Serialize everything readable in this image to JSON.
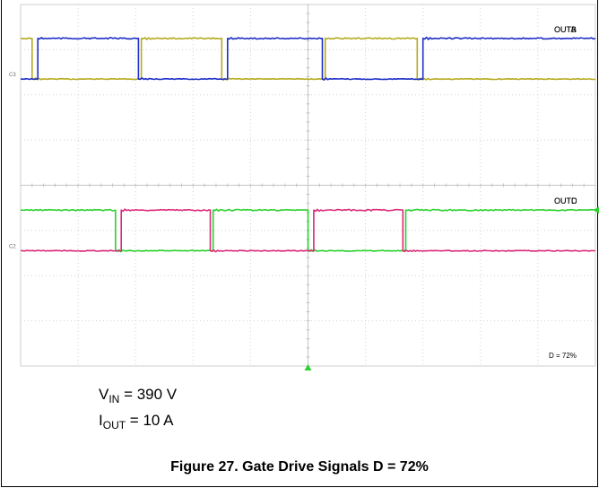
{
  "chart_data": {
    "type": "line",
    "title": "",
    "xlabel": "",
    "ylabel": "",
    "grid": true,
    "x_divisions": 10,
    "y_divisions": 8,
    "x_range": [
      0,
      10
    ],
    "y_range": [
      0,
      8
    ],
    "annotation": "D = 72%",
    "ch_markers": [
      "C3",
      "C2"
    ],
    "series": [
      {
        "name": "OUTA",
        "color": "#b5ab1e",
        "low": 6.35,
        "high": 7.25,
        "x": [
          0,
          0.2,
          0.2,
          2.1,
          2.1,
          3.5,
          3.5,
          5.3,
          5.3,
          6.9,
          6.9,
          10
        ],
        "y": [
          7.25,
          7.25,
          6.35,
          6.35,
          7.25,
          7.25,
          6.35,
          6.35,
          7.25,
          7.25,
          6.35,
          6.35
        ]
      },
      {
        "name": "OUTB",
        "color": "#1f2fc6",
        "low": 6.35,
        "high": 7.25,
        "x": [
          0,
          0.3,
          0.3,
          2.05,
          2.05,
          3.6,
          3.6,
          5.25,
          5.25,
          7.0,
          7.0,
          10
        ],
        "y": [
          6.35,
          6.35,
          7.25,
          7.25,
          6.35,
          6.35,
          7.25,
          7.25,
          6.35,
          6.35,
          7.25,
          7.25
        ]
      },
      {
        "name": "OUTD",
        "color": "#2ad12d",
        "low": 2.55,
        "high": 3.45,
        "x": [
          0,
          1.65,
          1.65,
          3.35,
          3.35,
          5.0,
          5.0,
          6.7,
          6.7,
          10
        ],
        "y": [
          3.45,
          3.45,
          2.55,
          2.55,
          3.45,
          3.45,
          2.55,
          2.55,
          3.45,
          3.45
        ]
      },
      {
        "name": "OUTC",
        "color": "#dc2a78",
        "low": 2.55,
        "high": 3.45,
        "x": [
          0,
          1.75,
          1.75,
          3.3,
          3.3,
          5.1,
          5.1,
          6.65,
          6.65,
          10
        ],
        "y": [
          2.55,
          2.55,
          3.45,
          3.45,
          2.55,
          2.55,
          3.45,
          3.45,
          2.55,
          2.55
        ]
      }
    ]
  },
  "conditions": {
    "vin_main": "V",
    "vin_sub": "IN",
    "vin_rest": " = 390 V",
    "iout_main": "I",
    "iout_sub": "OUT",
    "iout_rest": " = 10 A"
  },
  "caption": "Figure 27. Gate Drive Signals D = 72%"
}
